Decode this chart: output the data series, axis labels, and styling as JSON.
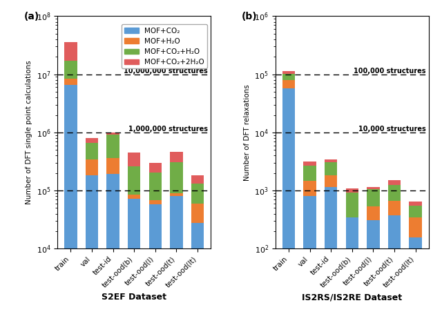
{
  "categories": [
    "train",
    "val",
    "test-id",
    "test-ood(b)",
    "test-ood(l)",
    "test-ood(t)",
    "test-ood(lt)"
  ],
  "s2ef": {
    "co2": [
      6500000,
      185000,
      195000,
      72000,
      58000,
      80000,
      28000
    ],
    "h2o": [
      1800000,
      155000,
      165000,
      12000,
      10000,
      9000,
      32000
    ],
    "co2h2o": [
      9000000,
      320000,
      570000,
      175000,
      135000,
      215000,
      72000
    ],
    "co2_2h2o": [
      18000000,
      150000,
      70000,
      190000,
      100000,
      160000,
      52000
    ]
  },
  "is2rs": {
    "co2": [
      57000,
      800,
      1150,
      350,
      310,
      380,
      155
    ],
    "h2o": [
      22000,
      680,
      670,
      0,
      230,
      280,
      190
    ],
    "co2h2o": [
      23000,
      1200,
      1250,
      580,
      530,
      590,
      200
    ],
    "co2_2h2o": [
      11000,
      490,
      380,
      145,
      95,
      280,
      95
    ]
  },
  "colors": {
    "co2": "#5b9bd5",
    "h2o": "#ed7d31",
    "co2h2o": "#70ad47",
    "co2_2h2o": "#e05c5c"
  },
  "legend_labels": [
    "MOF+CO₂",
    "MOF+H₂O",
    "MOF+CO₂+H₂O",
    "MOF+CO₂+2H₂O"
  ],
  "s2ef_title": "S2EF Dataset",
  "is2rs_title": "IS2RS/IS2RE Dataset",
  "s2ef_ylabel": "Number of DFT single point calculations",
  "is2rs_ylabel": "Number of DFT relaxations",
  "s2ef_hlines": [
    10000000.0,
    1000000.0,
    100000.0
  ],
  "s2ef_hline_labels": [
    "10,000,000 structures",
    "1,000,000 structures",
    ""
  ],
  "is2rs_hlines": [
    100000.0,
    10000.0,
    1000.0
  ],
  "is2rs_hline_labels": [
    "100,000 structures",
    "10,000 structures",
    ""
  ],
  "s2ef_ylim": [
    10000.0,
    100000000.0
  ],
  "is2rs_ylim": [
    100.0,
    1000000.0
  ],
  "panel_labels": [
    "(a)",
    "(b)"
  ]
}
